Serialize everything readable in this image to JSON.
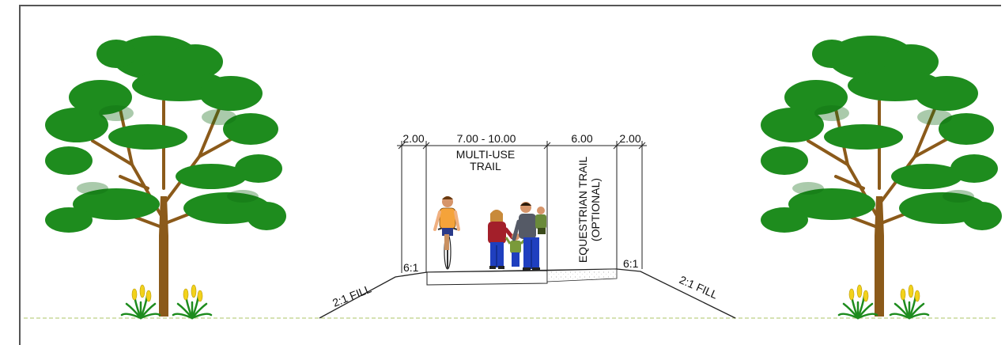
{
  "dimensions": {
    "left_shoulder": "2.00",
    "multi_use_width": "7.00 - 10.00",
    "equestrian_width": "6.00",
    "right_shoulder": "2.00"
  },
  "labels": {
    "multi_use_line1": "MULTI-USE",
    "multi_use_line2": "TRAIL",
    "equestrian_line1": "EQUESTRIAN TRAIL",
    "equestrian_line2": "(OPTIONAL)",
    "slope_left": "6:1",
    "slope_right": "6:1",
    "fill_left": "2:1 FILL",
    "fill_right": "2:1 FILL"
  },
  "colors": {
    "foliage": "#1e8c1e",
    "foliage_dark": "#0f6a12",
    "trunk": "#8b5a1a",
    "ground_line": "#c8d89a",
    "line": "#222222",
    "cyclist_shirt": "#f5a33a",
    "woman_jacket": "#a31f2a",
    "pants_blue": "#1f3fbf",
    "man_jacket": "#555a66",
    "child_shirt": "#7a9a3a"
  },
  "icons": {
    "tree": "tree-icon",
    "plant": "yellow-flower-plant-icon",
    "cyclist": "cyclist-icon",
    "pedestrian": "pedestrian-icon"
  }
}
